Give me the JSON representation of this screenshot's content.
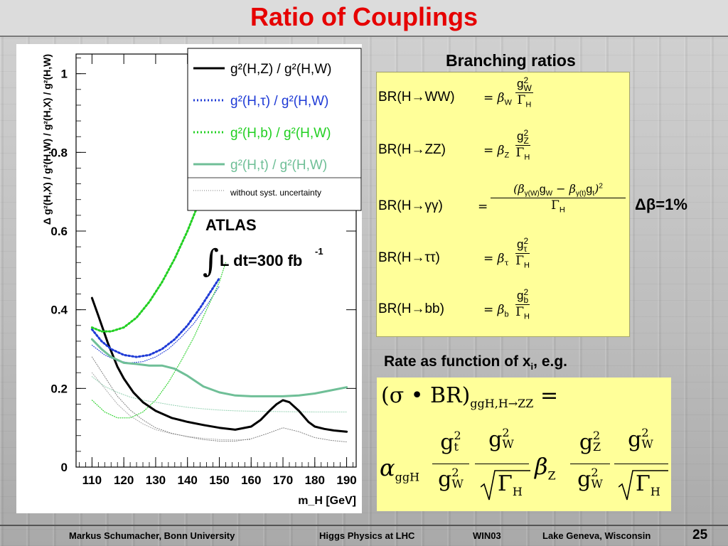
{
  "slide": {
    "title": "Ratio of Couplings",
    "page_number": "25"
  },
  "footer": {
    "author": "Markus Schumacher,  Bonn University",
    "topic": "Higgs Physics at LHC",
    "event": "WIN03",
    "location": "Lake Geneva, Wisconsin"
  },
  "chart_data": {
    "type": "line",
    "ylabel": "Δ g²(H,X) / g²(H,W)  /  g²(H,X) / g²(H,W)",
    "xlabel": "m_H [GeV]",
    "xlim": [
      105,
      193
    ],
    "ylim": [
      0,
      1.05
    ],
    "xticks": [
      "110",
      "120",
      "130",
      "140",
      "150",
      "160",
      "170",
      "180",
      "190"
    ],
    "yticks": [
      "0",
      "0.2",
      "0.4",
      "0.6",
      "0.8",
      "1"
    ],
    "grid": false,
    "legend_position": "top-right",
    "annotation_experiment": "ATLAS",
    "annotation_lumi_prefix": "∫",
    "annotation_lumi": "L dt=300 fb",
    "annotation_lumi_exp": "-1",
    "series": [
      {
        "name": "g²(H,Z) / g²(H,W)",
        "color": "#000000",
        "style": "solid",
        "x": [
          110,
          112,
          115,
          118,
          120,
          123,
          126,
          130,
          135,
          140,
          145,
          150,
          155,
          160,
          163,
          166,
          168,
          170,
          172,
          175,
          178,
          180,
          183,
          186,
          190
        ],
        "y": [
          0.43,
          0.385,
          0.315,
          0.255,
          0.225,
          0.19,
          0.165,
          0.143,
          0.125,
          0.115,
          0.107,
          0.1,
          0.095,
          0.103,
          0.12,
          0.145,
          0.16,
          0.17,
          0.165,
          0.143,
          0.115,
          0.103,
          0.097,
          0.093,
          0.09
        ]
      },
      {
        "name": "g²(H,τ) / g²(H,W)",
        "color": "#1f3bd6",
        "style": "dotted",
        "x": [
          110,
          113,
          116,
          120,
          124,
          128,
          132,
          136,
          140,
          144,
          148,
          150
        ],
        "y": [
          0.35,
          0.32,
          0.3,
          0.285,
          0.28,
          0.285,
          0.3,
          0.325,
          0.36,
          0.405,
          0.455,
          0.48
        ]
      },
      {
        "name": "g²(H,b) / g²(H,W)",
        "color": "#22d022",
        "style": "dotted",
        "x": [
          110,
          113,
          116,
          120,
          124,
          128,
          132,
          136,
          140,
          143,
          146,
          148,
          150,
          152
        ],
        "y": [
          0.355,
          0.345,
          0.345,
          0.355,
          0.38,
          0.42,
          0.47,
          0.53,
          0.6,
          0.66,
          0.72,
          0.78,
          0.84,
          0.9
        ]
      },
      {
        "name": "g²(H,t) / g²(H,W)",
        "color": "#6fbf97",
        "style": "solid",
        "x": [
          110,
          113,
          116,
          120,
          124,
          128,
          132,
          136,
          140,
          145,
          150,
          155,
          160,
          165,
          170,
          175,
          180,
          185,
          190
        ],
        "y": [
          0.325,
          0.3,
          0.28,
          0.265,
          0.262,
          0.258,
          0.258,
          0.25,
          0.232,
          0.205,
          0.19,
          0.182,
          0.18,
          0.18,
          0.18,
          0.182,
          0.187,
          0.195,
          0.203
        ]
      },
      {
        "name": "without syst. uncertainty",
        "color": "#7d7d7d",
        "style": "fine-dotted",
        "x": [
          110,
          114,
          118,
          122,
          126,
          130,
          135,
          140,
          145,
          150,
          155,
          160,
          165,
          170,
          175,
          180,
          185,
          190
        ],
        "y": [
          0.28,
          0.23,
          0.18,
          0.145,
          0.12,
          0.1,
          0.086,
          0.077,
          0.07,
          0.066,
          0.066,
          0.072,
          0.085,
          0.1,
          0.09,
          0.075,
          0.068,
          0.064
        ]
      }
    ],
    "thin_no_syst": [
      {
        "color": "#1f3bd6",
        "x": [
          110,
          114,
          118,
          122,
          126,
          130,
          134,
          138,
          142,
          146,
          150
        ],
        "y": [
          0.31,
          0.285,
          0.27,
          0.265,
          0.268,
          0.28,
          0.3,
          0.33,
          0.365,
          0.41,
          0.46
        ]
      },
      {
        "color": "#22d022",
        "x": [
          110,
          114,
          118,
          122,
          126,
          130,
          134,
          138,
          142,
          146,
          150,
          152
        ],
        "y": [
          0.17,
          0.14,
          0.125,
          0.125,
          0.14,
          0.17,
          0.215,
          0.27,
          0.33,
          0.4,
          0.47,
          0.52
        ]
      },
      {
        "color": "#9ad3b6",
        "x": [
          110,
          114,
          118,
          122,
          126,
          130,
          135,
          140,
          145,
          150,
          155,
          160,
          170,
          180,
          190
        ],
        "y": [
          0.23,
          0.205,
          0.19,
          0.178,
          0.17,
          0.165,
          0.158,
          0.152,
          0.148,
          0.145,
          0.143,
          0.142,
          0.141,
          0.14,
          0.14
        ]
      },
      {
        "color": "#b0b0b0",
        "x": [
          110,
          114,
          118,
          122,
          126,
          130,
          135,
          140,
          145,
          150,
          155,
          160
        ],
        "y": [
          0.24,
          0.2,
          0.16,
          0.13,
          0.11,
          0.095,
          0.085,
          0.078,
          0.073,
          0.07,
          0.069,
          0.07
        ]
      }
    ]
  },
  "branching": {
    "title": "Branching ratios",
    "rows": [
      {
        "lhs": "BR(H→WW)",
        "beta": "β",
        "beta_sub": "W",
        "num": "g",
        "num_sup": "2",
        "num_sub": "W",
        "den": "Γ",
        "den_sub": "H"
      },
      {
        "lhs": "BR(H→ZZ)",
        "beta": "β",
        "beta_sub": "Z",
        "num": "g",
        "num_sup": "2",
        "num_sub": "Z",
        "den": "Γ",
        "den_sub": "H"
      },
      {
        "lhs": "BR(H→γγ)",
        "num_text": "(β",
        "num_sub1": "γ(W)",
        "num_g1": "g",
        "num_g1_sub": "W",
        "minus": " − β",
        "num_sub2": "γ(t)",
        "num_g2": "g",
        "num_g2_sub": "t",
        "num_close": ")",
        "num_sup": "2",
        "den": "Γ",
        "den_sub": "H"
      },
      {
        "lhs": "BR(H→ττ)",
        "beta": "β",
        "beta_sub": "τ",
        "num": "g",
        "num_sup": "2",
        "num_sub": "τ",
        "den": "Γ",
        "den_sub": "H"
      },
      {
        "lhs": "BR(H→bb)",
        "beta": "β",
        "beta_sub": "b",
        "num": "g",
        "num_sup": "2",
        "num_sub": "b",
        "den": "Γ",
        "den_sub": "H"
      }
    ],
    "delta_beta": "Δβ=1%"
  },
  "rate": {
    "title_prefix": "Rate as function of x",
    "title_sub": "i",
    "title_suffix": ", e.g.",
    "lhs": "(σ • BR)",
    "lhs_sub": "ggH,H→ZZ",
    "equals": "=",
    "alpha": "α",
    "alpha_sub": "ggH",
    "g": "g",
    "sq": "2",
    "t": "t",
    "W": "W",
    "Z": "Z",
    "beta": "β",
    "gamma": "Γ",
    "H": "H"
  }
}
